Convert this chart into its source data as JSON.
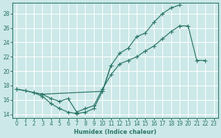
{
  "bg_color": "#cce8e8",
  "grid_color": "#ffffff",
  "line_color": "#2a7566",
  "xlabel": "Humidex (Indice chaleur)",
  "xlim": [
    -0.5,
    23.5
  ],
  "ylim": [
    13.5,
    29.5
  ],
  "xticks": [
    0,
    1,
    2,
    3,
    4,
    5,
    6,
    7,
    8,
    9,
    10,
    11,
    12,
    13,
    14,
    15,
    16,
    17,
    18,
    19,
    20,
    21,
    22,
    23
  ],
  "yticks": [
    14,
    16,
    18,
    20,
    22,
    24,
    26,
    28
  ],
  "line1_x": [
    0,
    1,
    2,
    3,
    10,
    11,
    12,
    13,
    14,
    15,
    16,
    17,
    18,
    19
  ],
  "line1_y": [
    17.5,
    17.3,
    17.0,
    16.8,
    17.2,
    20.8,
    22.5,
    23.2,
    24.8,
    25.3,
    26.8,
    28.0,
    28.8,
    29.2
  ],
  "line2_x": [
    2,
    3,
    4,
    5,
    6,
    7,
    8,
    9,
    10,
    11
  ],
  "line2_y": [
    17.0,
    16.5,
    15.5,
    14.8,
    14.3,
    14.1,
    14.3,
    14.8,
    17.2,
    20.8
  ],
  "line3_x": [
    0,
    3,
    4,
    5,
    6,
    7,
    8,
    9,
    10,
    11,
    12,
    13,
    14,
    15,
    16,
    17,
    18,
    19,
    20,
    21,
    22
  ],
  "line3_y": [
    17.5,
    16.8,
    16.2,
    15.8,
    16.2,
    14.3,
    14.8,
    15.2,
    17.5,
    19.5,
    21.0,
    21.5,
    22.0,
    22.8,
    23.5,
    24.5,
    25.5,
    26.3,
    26.3,
    21.5,
    21.5
  ]
}
